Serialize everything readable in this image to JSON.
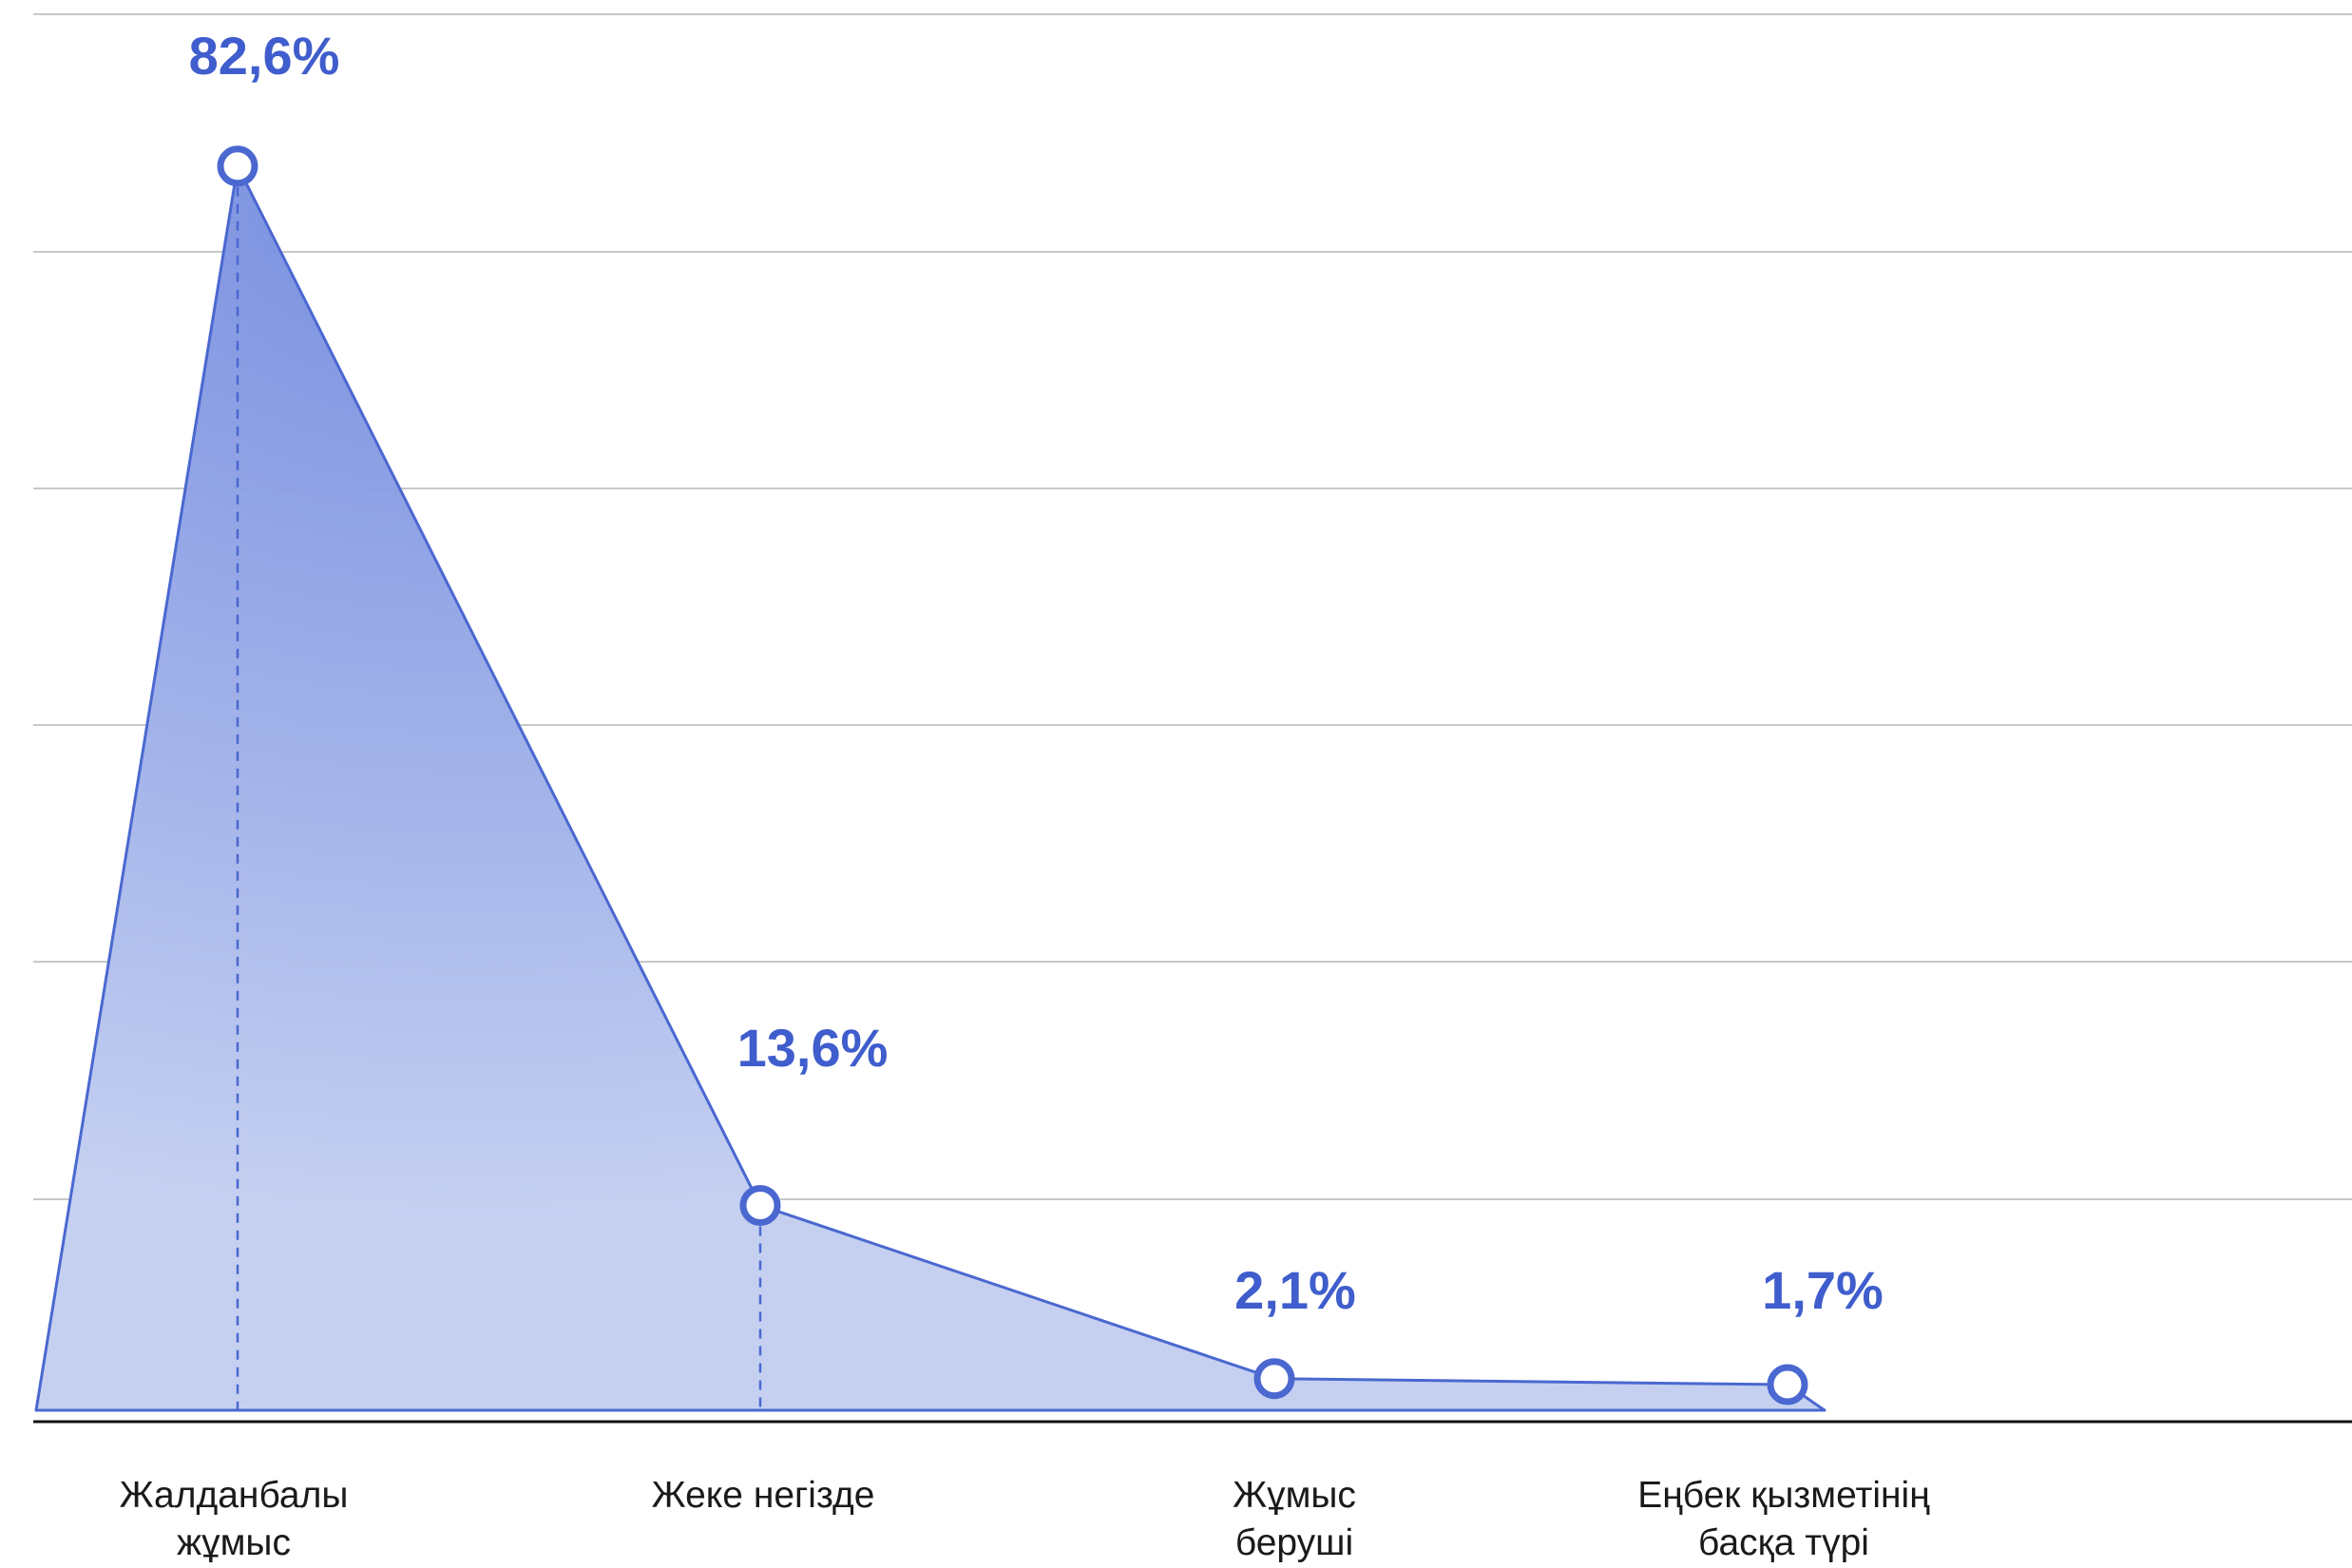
{
  "chart_data": {
    "type": "area",
    "categories": [
      [
        "Жалданбалы",
        "жұмыс"
      ],
      [
        "Жеке негізде"
      ],
      [
        "Жұмыс",
        "беруші"
      ],
      [
        "Еңбек қызметінің",
        "басқа түрі"
      ]
    ],
    "values": [
      82.6,
      13.6,
      2.1,
      1.7
    ],
    "value_labels": [
      "82,6%",
      "13,6%",
      "2,1%",
      "1,7%"
    ],
    "ylim": [
      0,
      95
    ],
    "grid": true,
    "legend": "none",
    "colors": {
      "line": "#4a68d0",
      "fill": "#c5d0f1",
      "fill_dark": "#6f87de",
      "label": "#3f5dcc",
      "grid": "#c8c8c8",
      "axis": "#111111"
    }
  }
}
